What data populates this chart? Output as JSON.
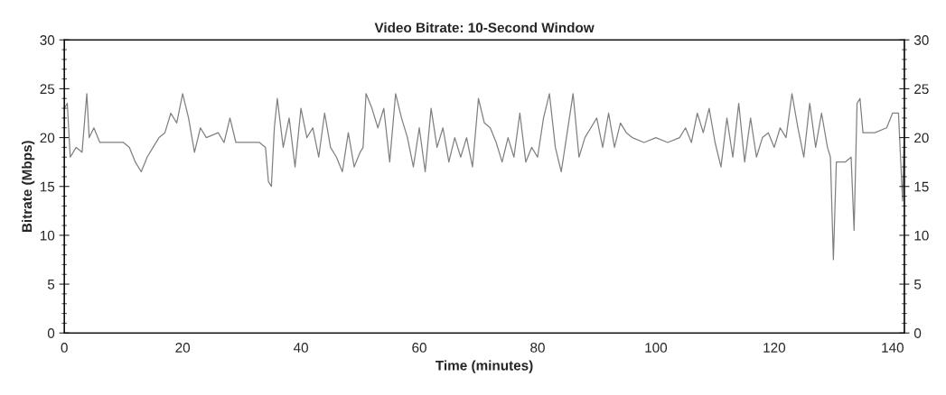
{
  "chart_data": {
    "type": "line",
    "title": "Video Bitrate: 10-Second Window",
    "xlabel": "Time (minutes)",
    "ylabel": "Bitrate (Mbps)",
    "series": [
      {
        "color": "#808080",
        "x": [
          0,
          0.5,
          1,
          2,
          3,
          3.8,
          4.2,
          5,
          6,
          8,
          10,
          11,
          12,
          13,
          14,
          15,
          16,
          17,
          18,
          19,
          20,
          21,
          22,
          23,
          24,
          26,
          27,
          28,
          29,
          31,
          33,
          34,
          34.5,
          35,
          35.5,
          36,
          37,
          38,
          39,
          40,
          41,
          42,
          43,
          44,
          45,
          46,
          47,
          48,
          49,
          50,
          50.5,
          51,
          52,
          53,
          54,
          55,
          56,
          57,
          58,
          59,
          60,
          61,
          62,
          63,
          64,
          65,
          66,
          67,
          68,
          69,
          70,
          71,
          72,
          73,
          74,
          75,
          76,
          77,
          78,
          79,
          80,
          81,
          82,
          83,
          84,
          85,
          86,
          87,
          88,
          89,
          90,
          91,
          92,
          93,
          94,
          95,
          96,
          98,
          100,
          102,
          104,
          105,
          106,
          107,
          108,
          109,
          110,
          111,
          112,
          113,
          114,
          115,
          116,
          117,
          118,
          119,
          120,
          121,
          122,
          123,
          124,
          125,
          126,
          127,
          128,
          129,
          129.5,
          130,
          130.5,
          132,
          133,
          133.5,
          134,
          134.5,
          135,
          137,
          139,
          140,
          141,
          141.7,
          142
        ],
        "values": [
          23,
          23.5,
          18,
          19,
          18.5,
          24.5,
          20,
          21,
          19.5,
          19.5,
          19.5,
          19,
          17.5,
          16.5,
          18,
          19,
          20,
          20.5,
          22.5,
          21.5,
          24.5,
          22,
          18.5,
          21,
          20,
          20.5,
          19.5,
          22,
          19.5,
          19.5,
          19.5,
          19,
          15.5,
          15,
          21,
          24,
          19,
          22,
          17,
          23,
          20,
          21,
          18,
          22.5,
          19,
          18,
          16.5,
          20.5,
          17,
          18.5,
          19,
          24.5,
          23,
          21,
          23,
          17.5,
          24.5,
          22,
          20,
          17,
          21,
          16.5,
          23,
          19,
          21,
          17.5,
          20,
          18,
          20,
          17,
          24,
          21.5,
          21,
          19.5,
          17.5,
          20,
          18,
          22.5,
          17.5,
          19,
          18,
          22,
          24.5,
          19,
          16.5,
          20.5,
          24.5,
          18,
          20,
          21,
          22,
          19,
          22.5,
          19,
          21.5,
          20.5,
          20,
          19.5,
          20,
          19.5,
          20,
          21,
          19.5,
          22.5,
          20.5,
          23,
          19.5,
          17,
          22,
          18,
          23.5,
          17.5,
          22,
          18,
          20,
          20.5,
          19,
          21,
          20,
          24.5,
          21,
          18,
          23.5,
          19,
          22.5,
          19,
          18,
          7.5,
          17.5,
          17.5,
          18,
          10.5,
          23.5,
          24,
          20.5,
          20.5,
          21,
          22.5,
          22.5,
          13.5,
          21
        ]
      }
    ],
    "xlim": [
      0,
      142
    ],
    "xticks": [
      0,
      20,
      40,
      60,
      80,
      100,
      120,
      140
    ],
    "ylim": [
      0,
      30
    ],
    "yticks": [
      0,
      5,
      10,
      15,
      20,
      25,
      30
    ],
    "y2lim": [
      0,
      30
    ],
    "y2ticks": [
      0,
      5,
      10,
      15,
      20,
      25,
      30
    ],
    "grid": false,
    "legend": false,
    "marker": "none",
    "line_style": "solid"
  }
}
